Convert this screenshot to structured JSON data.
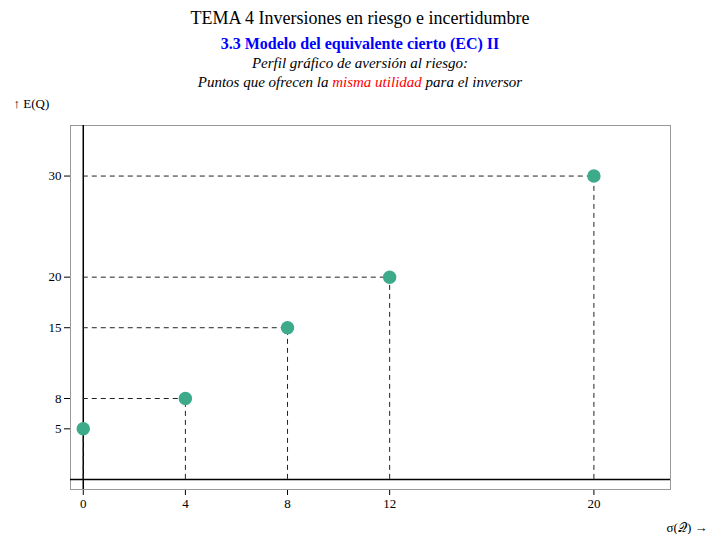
{
  "chart_data": {
    "type": "scatter",
    "title": "TEMA 4 Inversiones en riesgo e incertidumbre",
    "subtitle": [
      [
        {
          "text": "3.3 Modelo del equivalente cierto (EC) II",
          "color": "blue"
        }
      ],
      "Perfil gráfico de aversión al riesgo:",
      [
        {
          "text": "Puntos que ofrecen la "
        },
        {
          "text": "misma utilidad",
          "color": "red"
        },
        {
          "text": " para el inversor"
        }
      ]
    ],
    "x": [
      0,
      4,
      8,
      12,
      20
    ],
    "values": [
      5,
      8,
      15,
      20,
      30
    ],
    "color": "#3dab8a",
    "marker": "o",
    "line_style": "dashed",
    "xlabel": "σ(𝒬)",
    "ylabel": "E(Q)",
    "xlim": [
      -0.5,
      23
    ],
    "ylim": [
      -1,
      35
    ],
    "xticks": [
      0,
      4,
      8,
      12,
      20
    ],
    "yticks": [
      5,
      8,
      15,
      20,
      30
    ],
    "grid": false
  }
}
